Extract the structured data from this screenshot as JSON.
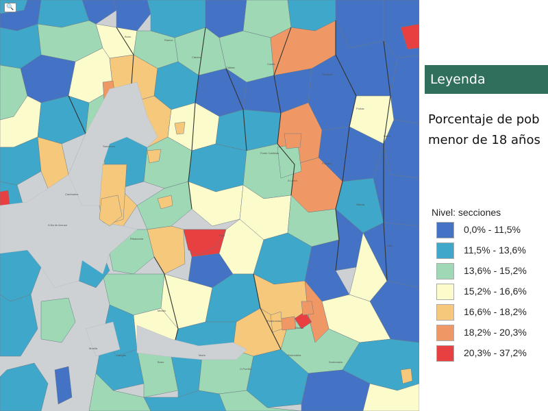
{
  "map": {
    "zoom_icon": "search-icon",
    "sea_color": "#cdd1d4",
    "boundary_color": "#333333",
    "places": [
      "Boiro",
      "Rianxo",
      "Catoira",
      "Caldas",
      "Cuntis",
      "Cerdedo",
      "Portas",
      "Barro",
      "A Illa de Arousa",
      "Cambados",
      "Sanxenxo",
      "Ribadumia",
      "Meaño",
      "Poio",
      "Pontevedra",
      "Vilaboa",
      "Moaña",
      "Cangas",
      "Bueu",
      "Marín",
      "O Porriño",
      "Redondela",
      "Soutomaior",
      "Ponte Caldelas",
      "A Lama",
      "Forcarei",
      "Silleda",
      "Lalín"
    ]
  },
  "legend": {
    "title": "Leyenda",
    "subtitle_line1": "Porcentaje de pob",
    "subtitle_line2": "menor de 18 años",
    "level_label": "Nivel: secciones",
    "items": [
      {
        "range": "0,0% - 11,5%",
        "color": "#4472c4"
      },
      {
        "range": "11,5% - 13,6%",
        "color": "#3fa7c9"
      },
      {
        "range": "13,6% - 15,2%",
        "color": "#9ed8b4"
      },
      {
        "range": "15,2% - 16,6%",
        "color": "#fbfbcb"
      },
      {
        "range": "16,6% - 18,2%",
        "color": "#f5c87c"
      },
      {
        "range": "18,2% - 20,3%",
        "color": "#ef9865"
      },
      {
        "range": "20,3% - 37,2%",
        "color": "#e84040"
      }
    ]
  }
}
